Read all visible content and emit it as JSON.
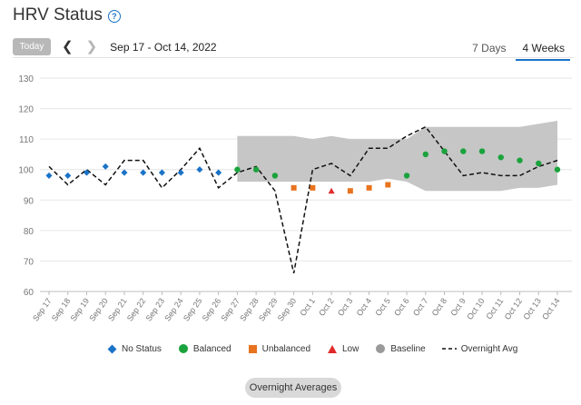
{
  "header": {
    "title": "HRV Status",
    "help_icon": "question-circle-icon"
  },
  "nav": {
    "today_label": "Today",
    "prev_icon": "chevron-left-icon",
    "next_icon": "chevron-right-icon",
    "date_range": "Sep 17 - Oct 14, 2022"
  },
  "tabs": [
    {
      "label": "7 Days",
      "active": false
    },
    {
      "label": "4 Weeks",
      "active": true
    }
  ],
  "legend": [
    {
      "label": "No Status",
      "shape": "diamond",
      "color": "#1a73c7"
    },
    {
      "label": "Balanced",
      "shape": "circle",
      "color": "#1aa33c"
    },
    {
      "label": "Unbalanced",
      "shape": "square",
      "color": "#e8731e"
    },
    {
      "label": "Low",
      "shape": "triangle",
      "color": "#e02a2a"
    },
    {
      "label": "Baseline",
      "shape": "circle",
      "color": "#9a9a9a"
    },
    {
      "label": "Overnight Avg",
      "shape": "dash",
      "color": "#111111"
    }
  ],
  "colors": {
    "no_status": "#1a73c7",
    "balanced": "#1aa33c",
    "unbalanced": "#e8731e",
    "low": "#e02a2a",
    "baseline": "#c6c6c6",
    "avg_line": "#111111"
  },
  "overnight_button": "Overnight Averages",
  "chart_data": {
    "type": "scatter",
    "ylim": [
      60,
      130
    ],
    "yticks": [
      60,
      70,
      80,
      90,
      100,
      110,
      120,
      130
    ],
    "grid": true,
    "legend_position": "bottom",
    "categories": [
      "Sep 17",
      "Sep 18",
      "Sep 19",
      "Sep 20",
      "Sep 21",
      "Sep 22",
      "Sep 23",
      "Sep 24",
      "Sep 25",
      "Sep 26",
      "Sep 27",
      "Sep 28",
      "Sep 29",
      "Sep 30",
      "Oct 1",
      "Oct 2",
      "Oct 3",
      "Oct 4",
      "Oct 5",
      "Oct 6",
      "Oct 7",
      "Oct 8",
      "Oct 9",
      "Oct 10",
      "Oct 11",
      "Oct 12",
      "Oct 13",
      "Oct 14"
    ],
    "overnight_avg": [
      101,
      95,
      100,
      95,
      103,
      103,
      94,
      100,
      107,
      94,
      99,
      101,
      93,
      66,
      100,
      102,
      98,
      107,
      107,
      111,
      114,
      106,
      98,
      99,
      98,
      98,
      101,
      103
    ],
    "baseline_upper": [
      null,
      null,
      null,
      null,
      null,
      null,
      null,
      null,
      null,
      null,
      111,
      111,
      111,
      111,
      110,
      111,
      110,
      110,
      110,
      110,
      114,
      114,
      114,
      114,
      114,
      114,
      115,
      116
    ],
    "baseline_lower": [
      null,
      null,
      null,
      null,
      null,
      null,
      null,
      null,
      null,
      null,
      96,
      96,
      96,
      96,
      96,
      96,
      96,
      96,
      97,
      96,
      93,
      93,
      93,
      93,
      93,
      94,
      94,
      95
    ],
    "status_points": [
      {
        "i": 0,
        "v": 98,
        "status": "no_status"
      },
      {
        "i": 1,
        "v": 98,
        "status": "no_status"
      },
      {
        "i": 2,
        "v": 99,
        "status": "no_status"
      },
      {
        "i": 3,
        "v": 101,
        "status": "no_status"
      },
      {
        "i": 4,
        "v": 99,
        "status": "no_status"
      },
      {
        "i": 5,
        "v": 99,
        "status": "no_status"
      },
      {
        "i": 6,
        "v": 99,
        "status": "no_status"
      },
      {
        "i": 7,
        "v": 99,
        "status": "no_status"
      },
      {
        "i": 8,
        "v": 100,
        "status": "no_status"
      },
      {
        "i": 9,
        "v": 99,
        "status": "no_status"
      },
      {
        "i": 10,
        "v": 100,
        "status": "balanced"
      },
      {
        "i": 11,
        "v": 100,
        "status": "balanced"
      },
      {
        "i": 12,
        "v": 98,
        "status": "balanced"
      },
      {
        "i": 13,
        "v": 94,
        "status": "unbalanced"
      },
      {
        "i": 14,
        "v": 94,
        "status": "unbalanced"
      },
      {
        "i": 15,
        "v": 93,
        "status": "low"
      },
      {
        "i": 16,
        "v": 93,
        "status": "unbalanced"
      },
      {
        "i": 17,
        "v": 94,
        "status": "unbalanced"
      },
      {
        "i": 18,
        "v": 95,
        "status": "unbalanced"
      },
      {
        "i": 19,
        "v": 98,
        "status": "balanced"
      },
      {
        "i": 20,
        "v": 105,
        "status": "balanced"
      },
      {
        "i": 21,
        "v": 106,
        "status": "balanced"
      },
      {
        "i": 22,
        "v": 106,
        "status": "balanced"
      },
      {
        "i": 23,
        "v": 106,
        "status": "balanced"
      },
      {
        "i": 24,
        "v": 104,
        "status": "balanced"
      },
      {
        "i": 25,
        "v": 103,
        "status": "balanced"
      },
      {
        "i": 26,
        "v": 102,
        "status": "balanced"
      },
      {
        "i": 27,
        "v": 100,
        "status": "balanced"
      }
    ]
  }
}
